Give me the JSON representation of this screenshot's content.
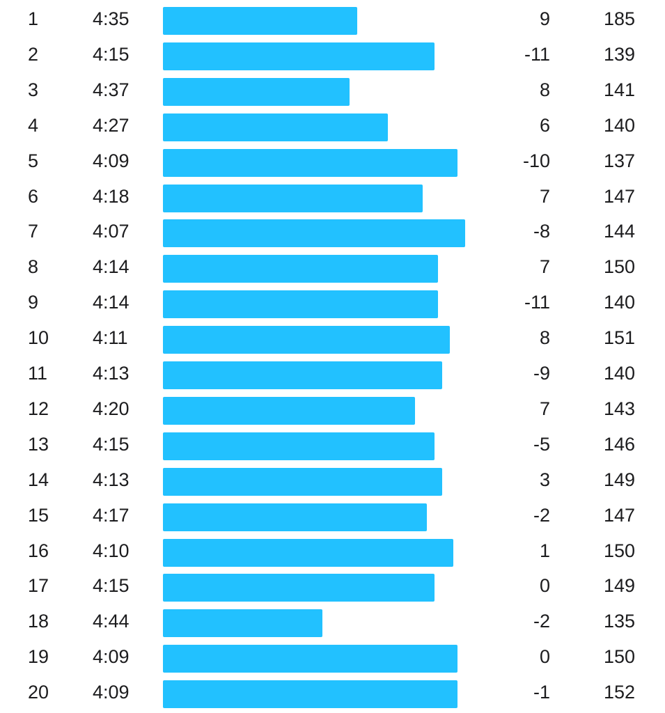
{
  "chart_data": {
    "type": "bar",
    "orientation": "horizontal",
    "bar_color": "#22c1ff",
    "rows": [
      {
        "km": "1",
        "pace": "4:35",
        "pace_seconds": 275,
        "elevation": "9",
        "heart_rate": "185"
      },
      {
        "km": "2",
        "pace": "4:15",
        "pace_seconds": 255,
        "elevation": "-11",
        "heart_rate": "139"
      },
      {
        "km": "3",
        "pace": "4:37",
        "pace_seconds": 277,
        "elevation": "8",
        "heart_rate": "141"
      },
      {
        "km": "4",
        "pace": "4:27",
        "pace_seconds": 267,
        "elevation": "6",
        "heart_rate": "140"
      },
      {
        "km": "5",
        "pace": "4:09",
        "pace_seconds": 249,
        "elevation": "-10",
        "heart_rate": "137"
      },
      {
        "km": "6",
        "pace": "4:18",
        "pace_seconds": 258,
        "elevation": "7",
        "heart_rate": "147"
      },
      {
        "km": "7",
        "pace": "4:07",
        "pace_seconds": 247,
        "elevation": "-8",
        "heart_rate": "144"
      },
      {
        "km": "8",
        "pace": "4:14",
        "pace_seconds": 254,
        "elevation": "7",
        "heart_rate": "150"
      },
      {
        "km": "9",
        "pace": "4:14",
        "pace_seconds": 254,
        "elevation": "-11",
        "heart_rate": "140"
      },
      {
        "km": "10",
        "pace": "4:11",
        "pace_seconds": 251,
        "elevation": "8",
        "heart_rate": "151"
      },
      {
        "km": "11",
        "pace": "4:13",
        "pace_seconds": 253,
        "elevation": "-9",
        "heart_rate": "140"
      },
      {
        "km": "12",
        "pace": "4:20",
        "pace_seconds": 260,
        "elevation": "7",
        "heart_rate": "143"
      },
      {
        "km": "13",
        "pace": "4:15",
        "pace_seconds": 255,
        "elevation": "-5",
        "heart_rate": "146"
      },
      {
        "km": "14",
        "pace": "4:13",
        "pace_seconds": 253,
        "elevation": "3",
        "heart_rate": "149"
      },
      {
        "km": "15",
        "pace": "4:17",
        "pace_seconds": 257,
        "elevation": "-2",
        "heart_rate": "147"
      },
      {
        "km": "16",
        "pace": "4:10",
        "pace_seconds": 250,
        "elevation": "1",
        "heart_rate": "150"
      },
      {
        "km": "17",
        "pace": "4:15",
        "pace_seconds": 255,
        "elevation": "0",
        "heart_rate": "149"
      },
      {
        "km": "18",
        "pace": "4:44",
        "pace_seconds": 284,
        "elevation": "-2",
        "heart_rate": "135"
      },
      {
        "km": "19",
        "pace": "4:09",
        "pace_seconds": 249,
        "elevation": "0",
        "heart_rate": "150"
      },
      {
        "km": "20",
        "pace": "4:09",
        "pace_seconds": 249,
        "elevation": "-1",
        "heart_rate": "152"
      }
    ]
  }
}
